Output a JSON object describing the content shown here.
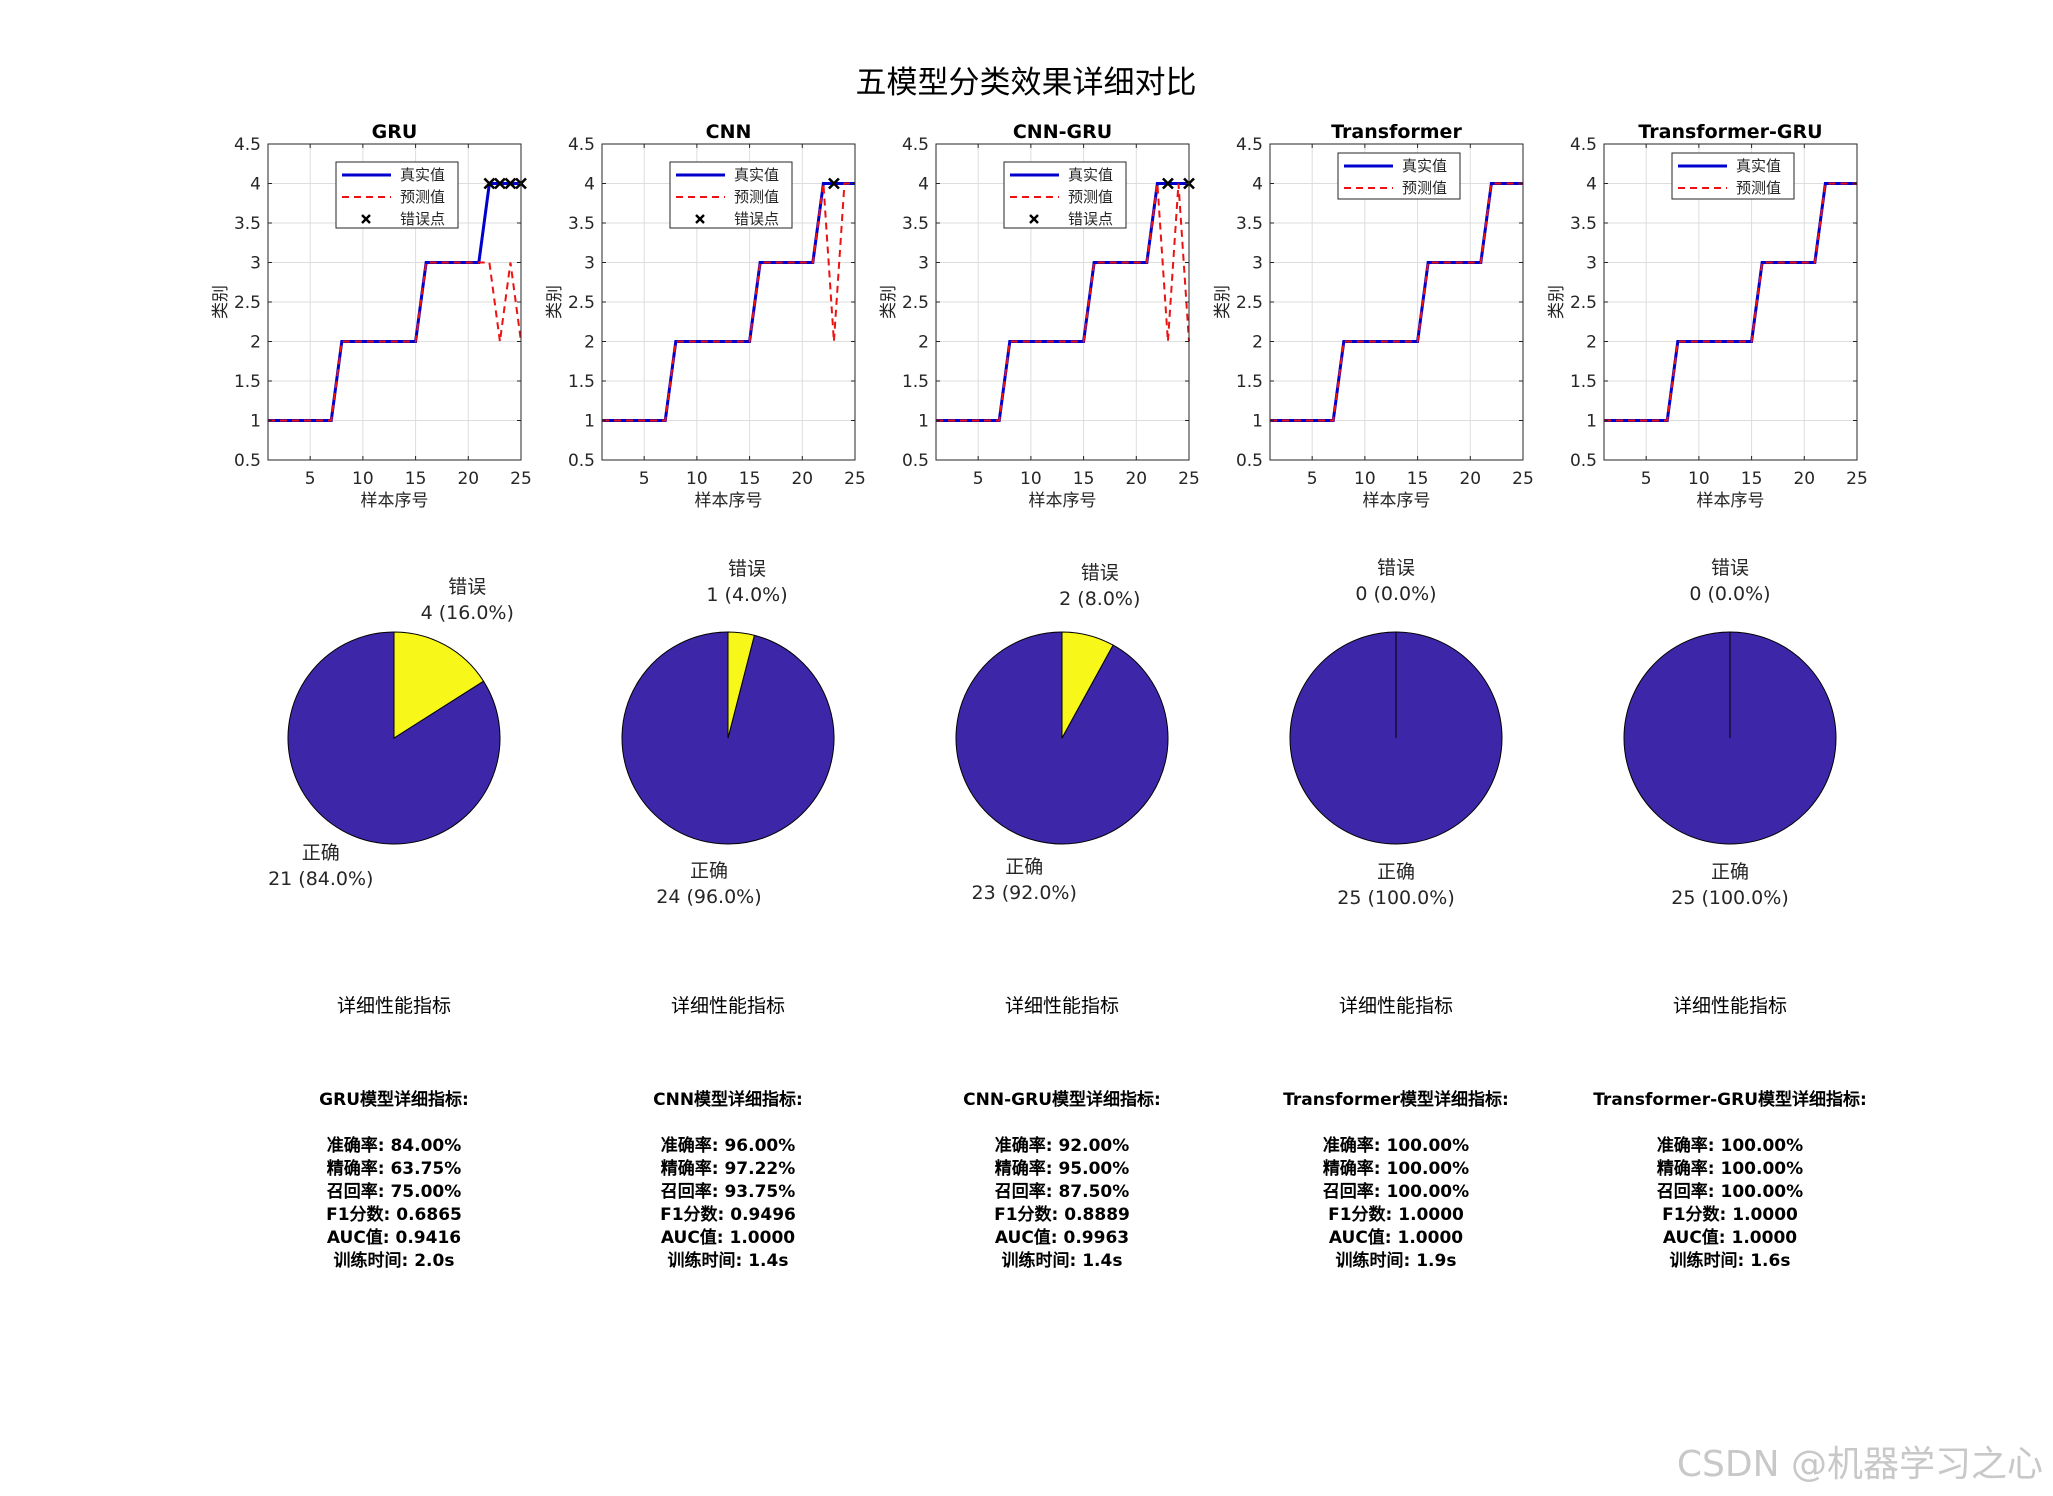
{
  "figure": {
    "title": "五模型分类效果详细对比",
    "watermark": "CSDN @机器学习之心"
  },
  "legend_labels": {
    "true": "真实值",
    "pred": "预测值",
    "error": "错误点"
  },
  "axis": {
    "xlabel": "样本序号",
    "ylabel": "类别",
    "yticks": [
      "0.5",
      "1",
      "1.5",
      "2",
      "2.5",
      "3",
      "3.5",
      "4",
      "4.5"
    ],
    "xticks": [
      "5",
      "10",
      "15",
      "20",
      "25"
    ]
  },
  "pie_labels": {
    "error": "错误",
    "correct": "正确"
  },
  "colors": {
    "true_line": "#0000cc",
    "pred_line": "#ee1111",
    "pie_correct": "#3d27a8",
    "pie_error": "#f7f71a",
    "grid": "#dddddd"
  },
  "metrics_heading": "详细性能指标",
  "chart_data": [
    {
      "type": "line",
      "title": "GRU",
      "xlabel": "样本序号",
      "ylabel": "类别",
      "xlim": [
        1,
        25
      ],
      "ylim": [
        0.5,
        4.5
      ],
      "grid": true,
      "legend_position": "top-right",
      "legend": [
        "真实值",
        "预测值",
        "错误点"
      ],
      "x": [
        1,
        2,
        3,
        4,
        5,
        6,
        7,
        8,
        9,
        10,
        11,
        12,
        13,
        14,
        15,
        16,
        17,
        18,
        19,
        20,
        21,
        22,
        23,
        24,
        25
      ],
      "series": [
        {
          "name": "真实值",
          "values": [
            1,
            1,
            1,
            1,
            1,
            1,
            1,
            2,
            2,
            2,
            2,
            2,
            2,
            2,
            2,
            3,
            3,
            3,
            3,
            3,
            3,
            4,
            4,
            4,
            4
          ]
        },
        {
          "name": "预测值",
          "values": [
            1,
            1,
            1,
            1,
            1,
            1,
            1,
            2,
            2,
            2,
            2,
            2,
            2,
            2,
            2,
            3,
            3,
            3,
            3,
            3,
            3,
            3,
            2,
            3,
            2
          ]
        },
        {
          "name": "错误点",
          "type": "scatter",
          "x": [
            22,
            23,
            24,
            25
          ],
          "values": [
            4,
            4,
            4,
            4
          ]
        }
      ],
      "pie": {
        "correct": 21,
        "error": 4,
        "correct_label": "21 (84.0%)",
        "error_label": "4 (16.0%)"
      },
      "metrics": {
        "header": "GRU模型详细指标:",
        "lines": [
          "准确率: 84.00%",
          "精确率: 63.75%",
          "召回率: 75.00%",
          "F1分数: 0.6865",
          "AUC值: 0.9416",
          "训练时间: 2.0s"
        ]
      }
    },
    {
      "type": "line",
      "title": "CNN",
      "xlabel": "样本序号",
      "ylabel": "类别",
      "xlim": [
        1,
        25
      ],
      "ylim": [
        0.5,
        4.5
      ],
      "grid": true,
      "legend_position": "top-right",
      "legend": [
        "真实值",
        "预测值",
        "错误点"
      ],
      "x": [
        1,
        2,
        3,
        4,
        5,
        6,
        7,
        8,
        9,
        10,
        11,
        12,
        13,
        14,
        15,
        16,
        17,
        18,
        19,
        20,
        21,
        22,
        23,
        24,
        25
      ],
      "series": [
        {
          "name": "真实值",
          "values": [
            1,
            1,
            1,
            1,
            1,
            1,
            1,
            2,
            2,
            2,
            2,
            2,
            2,
            2,
            2,
            3,
            3,
            3,
            3,
            3,
            3,
            4,
            4,
            4,
            4
          ]
        },
        {
          "name": "预测值",
          "values": [
            1,
            1,
            1,
            1,
            1,
            1,
            1,
            2,
            2,
            2,
            2,
            2,
            2,
            2,
            2,
            3,
            3,
            3,
            3,
            3,
            3,
            4,
            2,
            4,
            4
          ]
        },
        {
          "name": "错误点",
          "type": "scatter",
          "x": [
            23
          ],
          "values": [
            4
          ]
        }
      ],
      "pie": {
        "correct": 24,
        "error": 1,
        "correct_label": "24 (96.0%)",
        "error_label": "1 (4.0%)"
      },
      "metrics": {
        "header": "CNN模型详细指标:",
        "lines": [
          "准确率: 96.00%",
          "精确率: 97.22%",
          "召回率: 93.75%",
          "F1分数: 0.9496",
          "AUC值: 1.0000",
          "训练时间: 1.4s"
        ]
      }
    },
    {
      "type": "line",
      "title": "CNN-GRU",
      "xlabel": "样本序号",
      "ylabel": "类别",
      "xlim": [
        1,
        25
      ],
      "ylim": [
        0.5,
        4.5
      ],
      "grid": true,
      "legend_position": "top-right",
      "legend": [
        "真实值",
        "预测值",
        "错误点"
      ],
      "x": [
        1,
        2,
        3,
        4,
        5,
        6,
        7,
        8,
        9,
        10,
        11,
        12,
        13,
        14,
        15,
        16,
        17,
        18,
        19,
        20,
        21,
        22,
        23,
        24,
        25
      ],
      "series": [
        {
          "name": "真实值",
          "values": [
            1,
            1,
            1,
            1,
            1,
            1,
            1,
            2,
            2,
            2,
            2,
            2,
            2,
            2,
            2,
            3,
            3,
            3,
            3,
            3,
            3,
            4,
            4,
            4,
            4
          ]
        },
        {
          "name": "预测值",
          "values": [
            1,
            1,
            1,
            1,
            1,
            1,
            1,
            2,
            2,
            2,
            2,
            2,
            2,
            2,
            2,
            3,
            3,
            3,
            3,
            3,
            3,
            4,
            2,
            4,
            2
          ]
        },
        {
          "name": "错误点",
          "type": "scatter",
          "x": [
            23,
            25
          ],
          "values": [
            4,
            4
          ]
        }
      ],
      "pie": {
        "correct": 23,
        "error": 2,
        "correct_label": "23 (92.0%)",
        "error_label": "2 (8.0%)"
      },
      "metrics": {
        "header": "CNN-GRU模型详细指标:",
        "lines": [
          "准确率: 92.00%",
          "精确率: 95.00%",
          "召回率: 87.50%",
          "F1分数: 0.8889",
          "AUC值: 0.9963",
          "训练时间: 1.4s"
        ]
      }
    },
    {
      "type": "line",
      "title": "Transformer",
      "xlabel": "样本序号",
      "ylabel": "类别",
      "xlim": [
        1,
        25
      ],
      "ylim": [
        0.5,
        4.5
      ],
      "grid": true,
      "legend_position": "top-right",
      "legend": [
        "真实值",
        "预测值"
      ],
      "x": [
        1,
        2,
        3,
        4,
        5,
        6,
        7,
        8,
        9,
        10,
        11,
        12,
        13,
        14,
        15,
        16,
        17,
        18,
        19,
        20,
        21,
        22,
        23,
        24,
        25
      ],
      "series": [
        {
          "name": "真实值",
          "values": [
            1,
            1,
            1,
            1,
            1,
            1,
            1,
            2,
            2,
            2,
            2,
            2,
            2,
            2,
            2,
            3,
            3,
            3,
            3,
            3,
            3,
            4,
            4,
            4,
            4
          ]
        },
        {
          "name": "预测值",
          "values": [
            1,
            1,
            1,
            1,
            1,
            1,
            1,
            2,
            2,
            2,
            2,
            2,
            2,
            2,
            2,
            3,
            3,
            3,
            3,
            3,
            3,
            4,
            4,
            4,
            4
          ]
        }
      ],
      "pie": {
        "correct": 25,
        "error": 0,
        "correct_label": "25 (100.0%)",
        "error_label": "0 (0.0%)"
      },
      "metrics": {
        "header": "Transformer模型详细指标:",
        "lines": [
          "准确率: 100.00%",
          "精确率: 100.00%",
          "召回率: 100.00%",
          "F1分数: 1.0000",
          "AUC值: 1.0000",
          "训练时间: 1.9s"
        ]
      }
    },
    {
      "type": "line",
      "title": "Transformer-GRU",
      "xlabel": "样本序号",
      "ylabel": "类别",
      "xlim": [
        1,
        25
      ],
      "ylim": [
        0.5,
        4.5
      ],
      "grid": true,
      "legend_position": "top-right",
      "legend": [
        "真实值",
        "预测值"
      ],
      "x": [
        1,
        2,
        3,
        4,
        5,
        6,
        7,
        8,
        9,
        10,
        11,
        12,
        13,
        14,
        15,
        16,
        17,
        18,
        19,
        20,
        21,
        22,
        23,
        24,
        25
      ],
      "series": [
        {
          "name": "真实值",
          "values": [
            1,
            1,
            1,
            1,
            1,
            1,
            1,
            2,
            2,
            2,
            2,
            2,
            2,
            2,
            2,
            3,
            3,
            3,
            3,
            3,
            3,
            4,
            4,
            4,
            4
          ]
        },
        {
          "name": "预测值",
          "values": [
            1,
            1,
            1,
            1,
            1,
            1,
            1,
            2,
            2,
            2,
            2,
            2,
            2,
            2,
            2,
            3,
            3,
            3,
            3,
            3,
            3,
            4,
            4,
            4,
            4
          ]
        }
      ],
      "pie": {
        "correct": 25,
        "error": 0,
        "correct_label": "25 (100.0%)",
        "error_label": "0 (0.0%)"
      },
      "metrics": {
        "header": "Transformer-GRU模型详细指标:",
        "lines": [
          "准确率: 100.00%",
          "精确率: 100.00%",
          "召回率: 100.00%",
          "F1分数: 1.0000",
          "AUC值: 1.0000",
          "训练时间: 1.6s"
        ]
      }
    }
  ]
}
